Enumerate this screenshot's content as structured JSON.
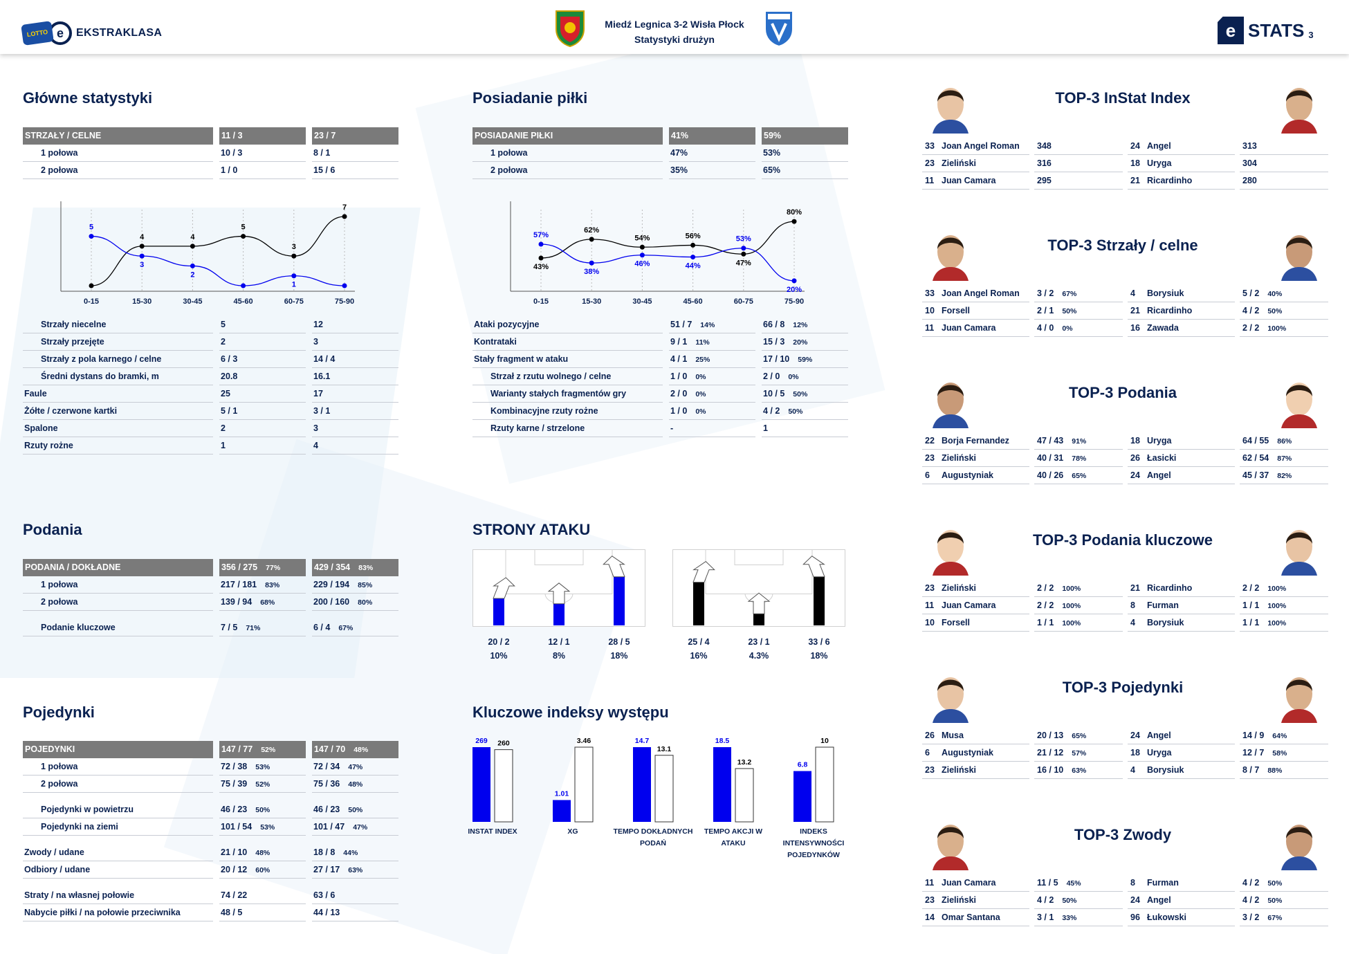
{
  "header": {
    "league_badge": "LOTTO",
    "league_name": "EKSTRAKLASA",
    "match": "Miedź Legnica 3-2 Wisła Płock",
    "subtitle": "Statystyki drużyn",
    "stats_brand": "STATS",
    "page_number": "3"
  },
  "colors": {
    "home": "#0000ee",
    "away": "#000000",
    "header_row": "#7a7a7a",
    "title": "#0a2150"
  },
  "main_stats": {
    "title": "Główne statystyki",
    "header": [
      "STRZAŁY / CELNE",
      "11 / 3",
      "23 / 7"
    ],
    "rows_top": [
      {
        "label": "1 połowa",
        "home": "10 / 3",
        "away": "8 / 1",
        "indent": true
      },
      {
        "label": "2 połowa",
        "home": "1 / 0",
        "away": "15 / 6",
        "indent": true
      }
    ],
    "rows": [
      {
        "label": "Strzały niecelne",
        "home": "5",
        "away": "12",
        "indent": true
      },
      {
        "label": "Strzały przejęte",
        "home": "2",
        "away": "3",
        "indent": true
      },
      {
        "label": "Strzały z pola karnego / celne",
        "home": "6 / 3",
        "away": "14 / 4",
        "indent": true
      },
      {
        "label": "Średni dystans do bramki, m",
        "home": "20.8",
        "away": "16.1",
        "indent": true
      },
      {
        "label": "Faule",
        "home": "25",
        "away": "17",
        "indent": false
      },
      {
        "label": "Żółte / czerwone kartki",
        "home": "5 / 1",
        "away": "3 / 1",
        "indent": false
      },
      {
        "label": "Spalone",
        "home": "2",
        "away": "3",
        "indent": false
      },
      {
        "label": "Rzuty rożne",
        "home": "1",
        "away": "4",
        "indent": false
      }
    ]
  },
  "shots_chart": {
    "type": "line",
    "categories": [
      "0-15",
      "15-30",
      "30-45",
      "45-60",
      "60-75",
      "75-90"
    ],
    "home": [
      5,
      3,
      2,
      0,
      1,
      0
    ],
    "away": [
      0,
      4,
      4,
      5,
      3,
      7
    ],
    "home_labels": [
      "5",
      "3",
      "2",
      "",
      "1",
      ""
    ],
    "away_labels": [
      "",
      "4",
      "4",
      "5",
      "3",
      "7"
    ],
    "ymax": 7
  },
  "possession": {
    "title": "Posiadanie piłki",
    "header": [
      "POSIADANIE PIŁKI",
      "41%",
      "59%"
    ],
    "rows_top": [
      {
        "label": "1 połowa",
        "home": "47%",
        "away": "53%",
        "indent": true
      },
      {
        "label": "2 połowa",
        "home": "35%",
        "away": "65%",
        "indent": true
      }
    ],
    "rows": [
      {
        "label": "Ataki pozycyjne",
        "home": "51 / 7",
        "home_pct": "14%",
        "away": "66 / 8",
        "away_pct": "12%",
        "indent": false
      },
      {
        "label": "Kontrataki",
        "home": "9 / 1",
        "home_pct": "11%",
        "away": "15 / 3",
        "away_pct": "20%",
        "indent": false
      },
      {
        "label": "Stały fragment w ataku",
        "home": "4 / 1",
        "home_pct": "25%",
        "away": "17 / 10",
        "away_pct": "59%",
        "indent": false
      },
      {
        "label": "Strzał z rzutu wolnego / celne",
        "home": "1 / 0",
        "home_pct": "0%",
        "away": "2 / 0",
        "away_pct": "0%",
        "indent": true
      },
      {
        "label": "Warianty stałych fragmentów gry",
        "home": "2 / 0",
        "home_pct": "0%",
        "away": "10 / 5",
        "away_pct": "50%",
        "indent": true
      },
      {
        "label": "Kombinacyjne rzuty rożne",
        "home": "1 / 0",
        "home_pct": "0%",
        "away": "4 / 2",
        "away_pct": "50%",
        "indent": true
      },
      {
        "label": "Rzuty karne / strzelone",
        "home": "-",
        "home_pct": "",
        "away": "1",
        "away_pct": "",
        "indent": true
      }
    ]
  },
  "possession_chart": {
    "type": "line",
    "categories": [
      "0-15",
      "15-30",
      "30-45",
      "45-60",
      "60-75",
      "75-90"
    ],
    "home": [
      57,
      38,
      46,
      44,
      53,
      20
    ],
    "away": [
      43,
      62,
      54,
      56,
      47,
      80
    ],
    "home_labels": [
      "57%",
      "38%",
      "46%",
      "44%",
      "53%",
      "20%"
    ],
    "away_labels": [
      "43%",
      "62%",
      "54%",
      "56%",
      "47%",
      "80%"
    ],
    "ymin": 15,
    "ymax": 85
  },
  "passes": {
    "title": "Podania",
    "header": {
      "label": "PODANIA / DOKŁADNE",
      "home": "356 / 275",
      "home_pct": "77%",
      "away": "429 / 354",
      "away_pct": "83%"
    },
    "rows_top": [
      {
        "label": "1 połowa",
        "home": "217 / 181",
        "home_pct": "83%",
        "away": "229 / 194",
        "away_pct": "85%",
        "indent": true
      },
      {
        "label": "2 połowa",
        "home": "139 / 94",
        "home_pct": "68%",
        "away": "200 / 160",
        "away_pct": "80%",
        "indent": true
      }
    ],
    "rows": [
      {
        "label": "Podanie kluczowe",
        "home": "7 / 5",
        "home_pct": "71%",
        "away": "6 / 4",
        "away_pct": "67%",
        "indent": true
      }
    ]
  },
  "attack_sides": {
    "title": "STRONY ATAKU",
    "home": [
      {
        "value": "20 / 2",
        "pct": "10%",
        "share": 10
      },
      {
        "value": "12 / 1",
        "pct": "8%",
        "share": 8
      },
      {
        "value": "28 / 5",
        "pct": "18%",
        "share": 18
      }
    ],
    "away": [
      {
        "value": "25 / 4",
        "pct": "16%",
        "share": 16
      },
      {
        "value": "23 / 1",
        "pct": "4.3%",
        "share": 4.3
      },
      {
        "value": "33 / 6",
        "pct": "18%",
        "share": 18
      }
    ]
  },
  "duels": {
    "title": "Pojedynki",
    "header": {
      "label": "POJEDYNKI",
      "home": "147 / 77",
      "home_pct": "52%",
      "away": "147 / 70",
      "away_pct": "48%"
    },
    "groups": [
      [
        {
          "label": "1 połowa",
          "home": "72 / 38",
          "home_pct": "53%",
          "away": "72 / 34",
          "away_pct": "47%",
          "indent": true
        },
        {
          "label": "2 połowa",
          "home": "75 / 39",
          "home_pct": "52%",
          "away": "75 / 36",
          "away_pct": "48%",
          "indent": true
        }
      ],
      [
        {
          "label": "Pojedynki w powietrzu",
          "home": "46 / 23",
          "home_pct": "50%",
          "away": "46 / 23",
          "away_pct": "50%",
          "indent": true
        },
        {
          "label": "Pojedynki na ziemi",
          "home": "101 / 54",
          "home_pct": "53%",
          "away": "101 / 47",
          "away_pct": "47%",
          "indent": true
        }
      ],
      [
        {
          "label": "Zwody / udane",
          "home": "21 / 10",
          "home_pct": "48%",
          "away": "18 / 8",
          "away_pct": "44%",
          "indent": false
        },
        {
          "label": "Odbiory / udane",
          "home": "20 / 12",
          "home_pct": "60%",
          "away": "27 / 17",
          "away_pct": "63%",
          "indent": false
        }
      ],
      [
        {
          "label": "Straty / na własnej połowie",
          "home": "74 / 22",
          "home_pct": "",
          "away": "63 / 6",
          "away_pct": "",
          "indent": false
        },
        {
          "label": "Nabycie piłki / na połowie przeciwnika",
          "home": "48 / 5",
          "home_pct": "",
          "away": "44 / 13",
          "away_pct": "",
          "indent": false
        }
      ]
    ]
  },
  "key_indices": {
    "title": "Kluczowe indeksy występu",
    "chart_data": {
      "type": "bar",
      "groups": [
        {
          "label": [
            "INSTAT INDEX"
          ],
          "home": 269,
          "away": 260,
          "home_label": "269",
          "away_label": "260",
          "max": 269
        },
        {
          "label": [
            "XG"
          ],
          "home": 1.01,
          "away": 3.46,
          "home_label": "1.01",
          "away_label": "3.46",
          "max": 3.46
        },
        {
          "label": [
            "TEMPO DOKŁADNYCH",
            "PODAŃ"
          ],
          "home": 14.7,
          "away": 13.1,
          "home_label": "14.7",
          "away_label": "13.1",
          "max": 14.7
        },
        {
          "label": [
            "TEMPO AKCJI W",
            "ATAKU"
          ],
          "home": 18.5,
          "away": 13.2,
          "home_label": "18.5",
          "away_label": "13.2",
          "max": 18.5
        },
        {
          "label": [
            "INDEKS",
            "INTENSYWNOŚCI",
            "POJEDYNKÓW"
          ],
          "home": 6.8,
          "away": 10,
          "home_label": "6.8",
          "away_label": "10",
          "max": 10
        }
      ]
    }
  },
  "top3": [
    {
      "title": "TOP-3 InStat Index",
      "home": [
        {
          "no": "33",
          "name": "Joan Angel Roman",
          "value": "348",
          "pct": ""
        },
        {
          "no": "23",
          "name": "Zieliński",
          "value": "316",
          "pct": ""
        },
        {
          "no": "11",
          "name": "Juan Camara",
          "value": "295",
          "pct": ""
        }
      ],
      "away": [
        {
          "no": "24",
          "name": "Angel",
          "value": "313",
          "pct": ""
        },
        {
          "no": "18",
          "name": "Uryga",
          "value": "304",
          "pct": ""
        },
        {
          "no": "21",
          "name": "Ricardinho",
          "value": "280",
          "pct": ""
        }
      ]
    },
    {
      "title": "TOP-3 Strzały / celne",
      "home": [
        {
          "no": "33",
          "name": "Joan Angel Roman",
          "value": "3 / 2",
          "pct": "67%"
        },
        {
          "no": "10",
          "name": "Forsell",
          "value": "2 / 1",
          "pct": "50%"
        },
        {
          "no": "11",
          "name": "Juan Camara",
          "value": "4 / 0",
          "pct": "0%"
        }
      ],
      "away": [
        {
          "no": "4",
          "name": "Borysiuk",
          "value": "5 / 2",
          "pct": "40%"
        },
        {
          "no": "21",
          "name": "Ricardinho",
          "value": "4 / 2",
          "pct": "50%"
        },
        {
          "no": "16",
          "name": "Zawada",
          "value": "2 / 2",
          "pct": "100%"
        }
      ]
    },
    {
      "title": "TOP-3 Podania",
      "home": [
        {
          "no": "22",
          "name": "Borja Fernandez",
          "value": "47 / 43",
          "pct": "91%"
        },
        {
          "no": "23",
          "name": "Zieliński",
          "value": "40 / 31",
          "pct": "78%"
        },
        {
          "no": "6",
          "name": "Augustyniak",
          "value": "40 / 26",
          "pct": "65%"
        }
      ],
      "away": [
        {
          "no": "18",
          "name": "Uryga",
          "value": "64 / 55",
          "pct": "86%"
        },
        {
          "no": "26",
          "name": "Łasicki",
          "value": "62 / 54",
          "pct": "87%"
        },
        {
          "no": "24",
          "name": "Angel",
          "value": "45 / 37",
          "pct": "82%"
        }
      ]
    },
    {
      "title": "TOP-3 Podania kluczowe",
      "home": [
        {
          "no": "23",
          "name": "Zieliński",
          "value": "2 / 2",
          "pct": "100%"
        },
        {
          "no": "11",
          "name": "Juan Camara",
          "value": "2 / 2",
          "pct": "100%"
        },
        {
          "no": "10",
          "name": "Forsell",
          "value": "1 / 1",
          "pct": "100%"
        }
      ],
      "away": [
        {
          "no": "21",
          "name": "Ricardinho",
          "value": "2 / 2",
          "pct": "100%"
        },
        {
          "no": "8",
          "name": "Furman",
          "value": "1 / 1",
          "pct": "100%"
        },
        {
          "no": "4",
          "name": "Borysiuk",
          "value": "1 / 1",
          "pct": "100%"
        }
      ]
    },
    {
      "title": "TOP-3 Pojedynki",
      "home": [
        {
          "no": "26",
          "name": "Musa",
          "value": "20 / 13",
          "pct": "65%"
        },
        {
          "no": "6",
          "name": "Augustyniak",
          "value": "21 / 12",
          "pct": "57%"
        },
        {
          "no": "23",
          "name": "Zieliński",
          "value": "16 / 10",
          "pct": "63%"
        }
      ],
      "away": [
        {
          "no": "24",
          "name": "Angel",
          "value": "14 / 9",
          "pct": "64%"
        },
        {
          "no": "18",
          "name": "Uryga",
          "value": "12 / 7",
          "pct": "58%"
        },
        {
          "no": "4",
          "name": "Borysiuk",
          "value": "8 / 7",
          "pct": "88%"
        }
      ]
    },
    {
      "title": "TOP-3 Zwody",
      "home": [
        {
          "no": "11",
          "name": "Juan Camara",
          "value": "11 / 5",
          "pct": "45%"
        },
        {
          "no": "23",
          "name": "Zieliński",
          "value": "4 / 2",
          "pct": "50%"
        },
        {
          "no": "14",
          "name": "Omar Santana",
          "value": "3 / 1",
          "pct": "33%"
        }
      ],
      "away": [
        {
          "no": "8",
          "name": "Furman",
          "value": "4 / 2",
          "pct": "50%"
        },
        {
          "no": "24",
          "name": "Angel",
          "value": "4 / 2",
          "pct": "50%"
        },
        {
          "no": "96",
          "name": "Łukowski",
          "value": "3 / 2",
          "pct": "67%"
        }
      ]
    }
  ]
}
